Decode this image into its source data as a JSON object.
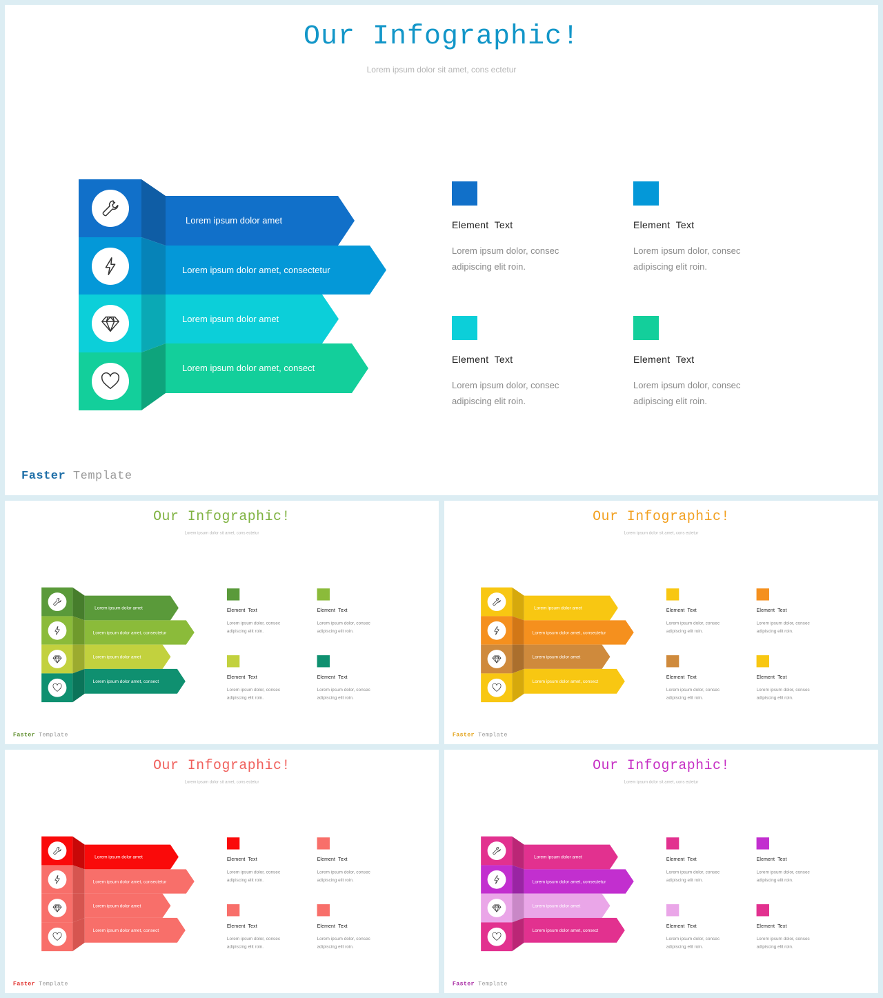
{
  "icons": [
    "wrench-icon",
    "lightning-icon",
    "diamond-icon",
    "heart-icon"
  ],
  "slides": [
    {
      "id": "main",
      "title": "Our Infographic!",
      "subtitle": "Lorem  ipsum dolor sit amet, cons ectetur",
      "footer": {
        "bold": "Faster",
        "rest": "Template"
      },
      "colors": {
        "title": "#1296c8",
        "footer_bold": "#1f6fa8",
        "bars": [
          "#1170c9",
          "#0498d8",
          "#0ccfd9",
          "#13cf9b"
        ],
        "sides": [
          "#0f5da5",
          "#0683b8",
          "#0aa9b5",
          "#0ea47c"
        ],
        "squares": [
          "#1170c9",
          "#0498d8",
          "#0ccfd9",
          "#13cf9b"
        ]
      },
      "bars": [
        "Lorem ipsum dolor amet",
        "Lorem ipsum dolor amet, consectetur",
        "Lorem ipsum dolor amet",
        "Lorem ipsum dolor amet, consect"
      ],
      "elements": [
        {
          "title": "Element  Text",
          "text": "Lorem ipsum dolor, consec adipiscing elit roin."
        },
        {
          "title": "Element  Text",
          "text": "Lorem ipsum dolor, consec adipiscing elit roin."
        },
        {
          "title": "Element  Text",
          "text": "Lorem ipsum dolor, consec adipiscing elit roin."
        },
        {
          "title": "Element  Text",
          "text": "Lorem ipsum dolor, consec adipiscing elit roin."
        }
      ]
    },
    {
      "id": "green",
      "title": "Our Infographic!",
      "subtitle": "Lorem  ipsum dolor sit amet, cons ectetur",
      "footer": {
        "bold": "Faster",
        "rest": "Template"
      },
      "colors": {
        "title": "#7fb241",
        "footer_bold": "#5f8f2e",
        "bars": [
          "#5a9a3a",
          "#8bbb3a",
          "#c2d13e",
          "#0f9070"
        ],
        "sides": [
          "#467d2c",
          "#6f9a2c",
          "#9cab2f",
          "#0b7459"
        ],
        "squares": [
          "#5a9a3a",
          "#8bbb3a",
          "#c2d13e",
          "#0f9070"
        ]
      },
      "bars": [
        "Lorem ipsum dolor amet",
        "Lorem ipsum dolor amet, consectetur",
        "Lorem ipsum dolor amet",
        "Lorem ipsum dolor amet, consect"
      ],
      "elements": [
        {
          "title": "Element  Text",
          "text": "Lorem ipsum dolor, consec adipiscing elit roin."
        },
        {
          "title": "Element  Text",
          "text": "Lorem ipsum dolor, consec adipiscing elit roin."
        },
        {
          "title": "Element  Text",
          "text": "Lorem ipsum dolor, consec adipiscing elit roin."
        },
        {
          "title": "Element  Text",
          "text": "Lorem ipsum dolor, consec adipiscing elit roin."
        }
      ]
    },
    {
      "id": "orange",
      "title": "Our Infographic!",
      "subtitle": "Lorem  ipsum dolor sit amet, cons ectetur",
      "footer": {
        "bold": "Faster",
        "rest": "Template"
      },
      "colors": {
        "title": "#f2a020",
        "footer_bold": "#e3a41c",
        "bars": [
          "#f8c712",
          "#f5901e",
          "#cf8a3c",
          "#f8c712"
        ],
        "sides": [
          "#d6a90c",
          "#d27716",
          "#ab6f2d",
          "#d6a90c"
        ],
        "squares": [
          "#f8c712",
          "#f5901e",
          "#cf8a3c",
          "#f8c712"
        ]
      },
      "bars": [
        "Lorem ipsum dolor amet",
        "Lorem ipsum dolor amet, consectetur",
        "Lorem ipsum dolor amet",
        "Lorem ipsum dolor amet, consect"
      ],
      "elements": [
        {
          "title": "Element  Text",
          "text": "Lorem ipsum dolor, consec adipiscing elit roin."
        },
        {
          "title": "Element  Text",
          "text": "Lorem ipsum dolor, consec adipiscing elit roin."
        },
        {
          "title": "Element  Text",
          "text": "Lorem ipsum dolor, consec adipiscing elit roin."
        },
        {
          "title": "Element  Text",
          "text": "Lorem ipsum dolor, consec adipiscing elit roin."
        }
      ]
    },
    {
      "id": "red",
      "title": "Our Infographic!",
      "subtitle": "Lorem  ipsum dolor sit amet, cons ectetur",
      "footer": {
        "bold": "Faster",
        "rest": "Template"
      },
      "colors": {
        "title": "#f0605c",
        "footer_bold": "#e0302c",
        "bars": [
          "#fa0a0a",
          "#f86f6a",
          "#f86f6a",
          "#f86f6a"
        ],
        "sides": [
          "#c80808",
          "#d65550",
          "#d65550",
          "#d65550"
        ],
        "squares": [
          "#fa0a0a",
          "#f86f6a",
          "#f86f6a",
          "#f86f6a"
        ]
      },
      "bars": [
        "Lorem ipsum dolor amet",
        "Lorem ipsum dolor amet, consectetur",
        "Lorem ipsum dolor amet",
        "Lorem ipsum dolor amet, consect"
      ],
      "elements": [
        {
          "title": "Element  Text",
          "text": "Lorem ipsum dolor, consec adipiscing elit roin."
        },
        {
          "title": "Element  Text",
          "text": "Lorem ipsum dolor, consec adipiscing elit roin."
        },
        {
          "title": "Element  Text",
          "text": "Lorem ipsum dolor, consec adipiscing elit roin."
        },
        {
          "title": "Element  Text",
          "text": "Lorem ipsum dolor, consec adipiscing elit roin."
        }
      ]
    },
    {
      "id": "pink",
      "title": "Our Infographic!",
      "subtitle": "Lorem  ipsum dolor sit amet, cons ectetur",
      "footer": {
        "bold": "Faster",
        "rest": "Template"
      },
      "colors": {
        "title": "#c62fc4",
        "footer_bold": "#a82aa3",
        "bars": [
          "#e2318f",
          "#c22fcf",
          "#eaa6e8",
          "#e2318f"
        ],
        "sides": [
          "#bb2676",
          "#9a24a4",
          "#c988c7",
          "#bb2676"
        ],
        "squares": [
          "#e2318f",
          "#c22fcf",
          "#eaa6e8",
          "#e2318f"
        ]
      },
      "bars": [
        "Lorem ipsum dolor amet",
        "Lorem ipsum dolor amet, consectetur",
        "Lorem ipsum dolor amet",
        "Lorem ipsum dolor amet, consect"
      ],
      "elements": [
        {
          "title": "Element  Text",
          "text": "Lorem ipsum dolor, consec adipiscing elit roin."
        },
        {
          "title": "Element  Text",
          "text": "Lorem ipsum dolor, consec adipiscing elit roin."
        },
        {
          "title": "Element  Text",
          "text": "Lorem ipsum dolor, consec adipiscing elit roin."
        },
        {
          "title": "Element  Text",
          "text": "Lorem ipsum dolor, consec adipiscing elit roin."
        }
      ]
    }
  ]
}
